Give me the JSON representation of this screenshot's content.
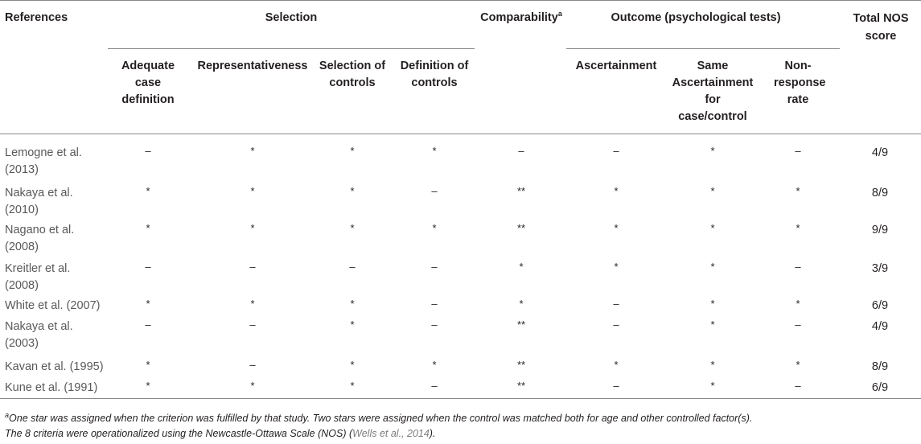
{
  "headers": {
    "references": "References",
    "selection": "Selection",
    "comparability": "Comparability",
    "comparability_sup": "a",
    "outcome": "Outcome (psychological tests)",
    "total_line1": "Total NOS",
    "total_line2": "score",
    "adequate": [
      "Adequate",
      "case",
      "definition"
    ],
    "representativeness": "Representativeness",
    "selection_controls": [
      "Selection of",
      "controls"
    ],
    "definition_controls": [
      "Definition of",
      "controls"
    ],
    "ascertainment": "Ascertainment",
    "same_ascertainment": [
      "Same",
      "Ascertainment",
      "for",
      "case/control"
    ],
    "nonresponse": [
      "Non-",
      "response",
      "rate"
    ]
  },
  "rows": [
    {
      "ref": [
        "Lemogne et al.",
        "(2013)"
      ],
      "cells": [
        "–",
        "*",
        "*",
        "*",
        "–",
        "–",
        "*",
        "–"
      ],
      "score": "4/9"
    },
    {
      "ref": [
        "Nakaya et al.",
        "(2010)"
      ],
      "cells": [
        "*",
        "*",
        "*",
        "–",
        "**",
        "*",
        "*",
        "*"
      ],
      "score": "8/9"
    },
    {
      "ref": [
        "Nagano et al.",
        "(2008)"
      ],
      "cells": [
        "*",
        "*",
        "*",
        "*",
        "**",
        "*",
        "*",
        "*"
      ],
      "score": "9/9"
    },
    {
      "ref": [
        "Kreitler et al.",
        "(2008)"
      ],
      "cells": [
        "–",
        "–",
        "–",
        "–",
        "*",
        "*",
        "*",
        "–"
      ],
      "score": "3/9"
    },
    {
      "ref": [
        "White et al. (2007)"
      ],
      "cells": [
        "*",
        "*",
        "*",
        "–",
        "*",
        "–",
        "*",
        "*"
      ],
      "score": "6/9"
    },
    {
      "ref": [
        "Nakaya et al.",
        "(2003)"
      ],
      "cells": [
        "–",
        "–",
        "*",
        "–",
        "**",
        "–",
        "*",
        "–"
      ],
      "score": "4/9"
    },
    {
      "ref": [
        "Kavan et al. (1995)"
      ],
      "cells": [
        "*",
        "–",
        "*",
        "*",
        "**",
        "*",
        "*",
        "*"
      ],
      "score": "8/9"
    },
    {
      "ref": [
        "Kune et al. (1991)"
      ],
      "cells": [
        "*",
        "*",
        "*",
        "–",
        "**",
        "–",
        "*",
        "–"
      ],
      "score": "6/9"
    }
  ],
  "footnote": {
    "sup": "a",
    "line1": "One star was assigned when the criterion was fulfilled by that study. Two stars were assigned when the control was matched both for age and other controlled factor(s).",
    "line2_pre": "The 8 criteria were operationalized using the Newcastle-Ottawa Scale (NOS) (",
    "line2_cite": "Wells et al., 2014",
    "line2_post": ")."
  }
}
